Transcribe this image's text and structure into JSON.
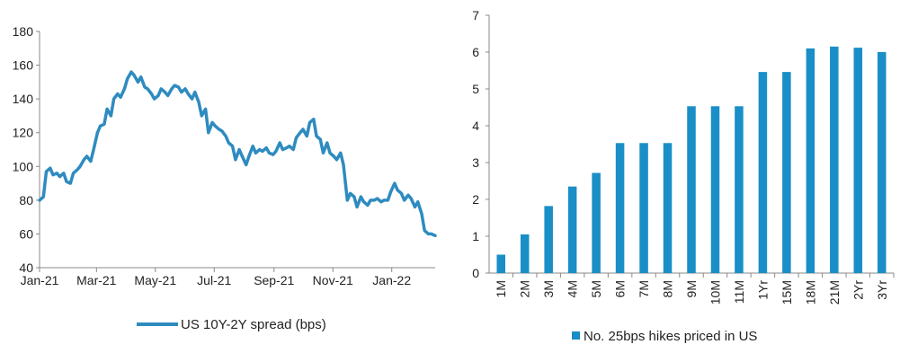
{
  "chart_data": [
    {
      "type": "line",
      "title": "",
      "xlabel": "",
      "ylabel": "",
      "ylim": [
        40,
        180
      ],
      "yticks": [
        40,
        60,
        80,
        100,
        120,
        140,
        160,
        180
      ],
      "xtick_labels": [
        "Jan-21",
        "Mar-21",
        "May-21",
        "Jul-21",
        "Sep-21",
        "Nov-21",
        "Jan-22"
      ],
      "grid": false,
      "legend_position": "bottom",
      "series": [
        {
          "name": "US 10Y-2Y spread (bps)",
          "color": "#2e8bc0",
          "x": [
            "2021-01-01",
            "2021-01-05",
            "2021-01-08",
            "2021-01-12",
            "2021-01-15",
            "2021-01-19",
            "2021-01-22",
            "2021-01-26",
            "2021-01-29",
            "2021-02-02",
            "2021-02-05",
            "2021-02-09",
            "2021-02-12",
            "2021-02-16",
            "2021-02-19",
            "2021-02-23",
            "2021-02-26",
            "2021-03-02",
            "2021-03-05",
            "2021-03-09",
            "2021-03-12",
            "2021-03-16",
            "2021-03-19",
            "2021-03-23",
            "2021-03-26",
            "2021-03-30",
            "2021-04-02",
            "2021-04-06",
            "2021-04-09",
            "2021-04-13",
            "2021-04-16",
            "2021-04-20",
            "2021-04-23",
            "2021-04-27",
            "2021-04-30",
            "2021-05-04",
            "2021-05-07",
            "2021-05-11",
            "2021-05-14",
            "2021-05-18",
            "2021-05-21",
            "2021-05-25",
            "2021-05-28",
            "2021-06-01",
            "2021-06-04",
            "2021-06-08",
            "2021-06-11",
            "2021-06-15",
            "2021-06-18",
            "2021-06-22",
            "2021-06-25",
            "2021-06-29",
            "2021-07-02",
            "2021-07-06",
            "2021-07-09",
            "2021-07-13",
            "2021-07-16",
            "2021-07-20",
            "2021-07-23",
            "2021-07-27",
            "2021-07-30",
            "2021-08-03",
            "2021-08-06",
            "2021-08-10",
            "2021-08-13",
            "2021-08-17",
            "2021-08-20",
            "2021-08-24",
            "2021-08-27",
            "2021-08-31",
            "2021-09-03",
            "2021-09-07",
            "2021-09-10",
            "2021-09-14",
            "2021-09-17",
            "2021-09-21",
            "2021-09-24",
            "2021-09-28",
            "2021-10-01",
            "2021-10-05",
            "2021-10-08",
            "2021-10-12",
            "2021-10-15",
            "2021-10-19",
            "2021-10-22",
            "2021-10-26",
            "2021-10-29",
            "2021-11-02",
            "2021-11-05",
            "2021-11-09",
            "2021-11-12",
            "2021-11-16",
            "2021-11-19",
            "2021-11-23",
            "2021-11-26",
            "2021-11-30",
            "2021-12-03",
            "2021-12-07",
            "2021-12-10",
            "2021-12-14",
            "2021-12-17",
            "2021-12-21",
            "2021-12-24",
            "2021-12-28",
            "2021-12-31",
            "2022-01-04",
            "2022-01-07",
            "2022-01-11",
            "2022-01-14",
            "2022-01-18",
            "2022-01-21",
            "2022-01-25",
            "2022-01-28",
            "2022-02-01",
            "2022-02-04",
            "2022-02-08",
            "2022-02-11",
            "2022-02-15"
          ],
          "values": [
            80,
            82,
            97,
            99,
            95,
            96,
            94,
            96,
            91,
            90,
            96,
            98,
            100,
            104,
            106,
            103,
            110,
            120,
            124,
            125,
            134,
            130,
            140,
            143,
            141,
            146,
            152,
            156,
            154,
            150,
            153,
            147,
            146,
            143,
            140,
            142,
            146,
            144,
            142,
            146,
            148,
            147,
            144,
            146,
            143,
            140,
            144,
            138,
            130,
            134,
            120,
            126,
            124,
            122,
            121,
            118,
            114,
            112,
            104,
            110,
            106,
            101,
            106,
            112,
            108,
            110,
            109,
            111,
            108,
            107,
            109,
            114,
            110,
            111,
            112,
            110,
            117,
            120,
            122,
            118,
            126,
            128,
            118,
            116,
            108,
            114,
            108,
            106,
            104,
            108,
            101,
            80,
            84,
            82,
            76,
            82,
            79,
            77,
            80,
            80,
            81,
            79,
            80,
            80,
            85,
            90,
            86,
            84,
            80,
            83,
            81,
            76,
            79,
            72,
            62,
            60,
            60,
            59
          ]
        }
      ]
    },
    {
      "type": "bar",
      "title": "",
      "xlabel": "",
      "ylabel": "",
      "ylim": [
        0,
        7
      ],
      "yticks": [
        0,
        1,
        2,
        3,
        4,
        5,
        6,
        7
      ],
      "grid": false,
      "legend_position": "bottom",
      "categories": [
        "1M",
        "2M",
        "3M",
        "4M",
        "5M",
        "6M",
        "7M",
        "8M",
        "9M",
        "10M",
        "11M",
        "1Yr",
        "15M",
        "18M",
        "21M",
        "2Yr",
        "3Yr"
      ],
      "series": [
        {
          "name": "No. 25bps hikes priced in US",
          "color": "#1a8fc7",
          "values": [
            0.5,
            1.05,
            1.82,
            2.35,
            2.72,
            3.53,
            3.53,
            3.53,
            4.53,
            4.53,
            4.53,
            5.46,
            5.46,
            6.1,
            6.15,
            6.12,
            6.0
          ]
        }
      ]
    }
  ]
}
